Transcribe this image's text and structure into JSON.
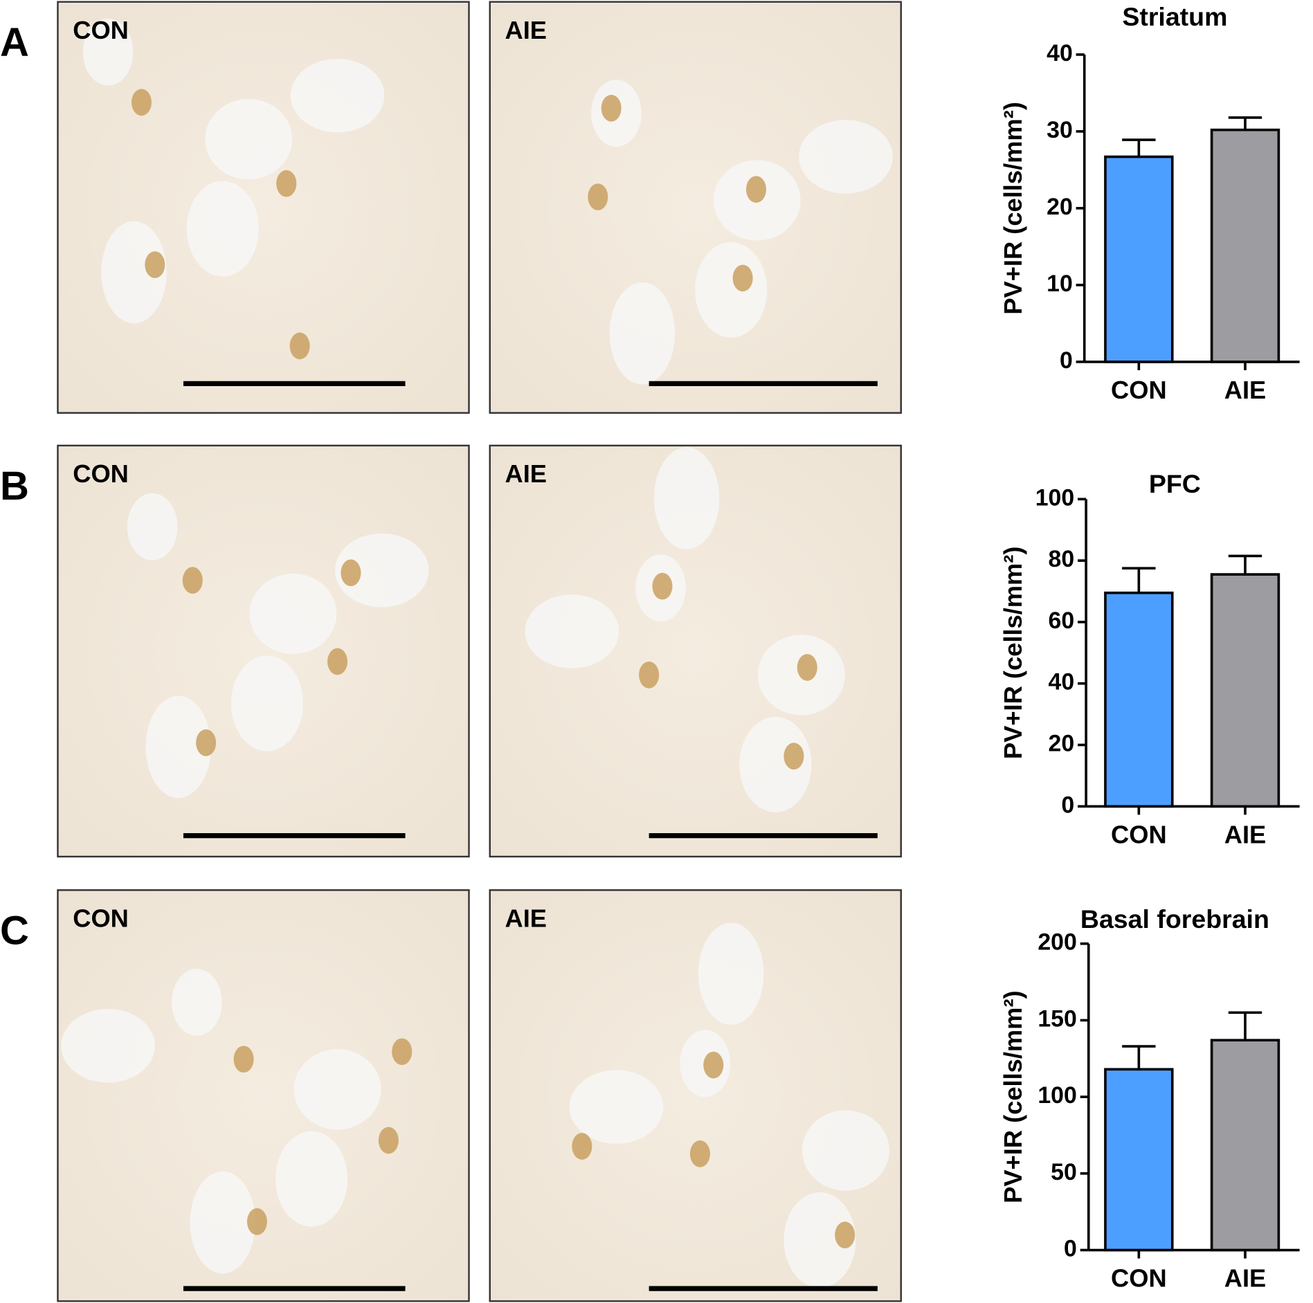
{
  "panels": [
    {
      "letter": "A",
      "images": [
        "CON",
        "AIE"
      ]
    },
    {
      "letter": "B",
      "images": [
        "CON",
        "AIE"
      ]
    },
    {
      "letter": "C",
      "images": [
        "CON",
        "AIE"
      ]
    }
  ],
  "chart_data": [
    {
      "type": "bar",
      "title": "Striatum",
      "ylabel": "PV+IR (cells/mm²)",
      "categories": [
        "CON",
        "AIE"
      ],
      "values": [
        26.7,
        30.2
      ],
      "errors": [
        2.2,
        1.6
      ],
      "colors": [
        "#4d9fff",
        "#9d9da1"
      ],
      "ylim": [
        0,
        40
      ],
      "yticks": [
        0,
        10,
        20,
        30,
        40
      ]
    },
    {
      "type": "bar",
      "title": "PFC",
      "ylabel": "PV+IR (cells/mm²)",
      "categories": [
        "CON",
        "AIE"
      ],
      "values": [
        69.5,
        75.5
      ],
      "errors": [
        8,
        6
      ],
      "colors": [
        "#4d9fff",
        "#9d9da1"
      ],
      "ylim": [
        0,
        100
      ],
      "yticks": [
        0,
        20,
        40,
        60,
        80,
        100
      ]
    },
    {
      "type": "bar",
      "title": "Basal forebrain",
      "ylabel": "PV+IR (cells/mm²)",
      "categories": [
        "CON",
        "AIE"
      ],
      "values": [
        118,
        137
      ],
      "errors": [
        15,
        18
      ],
      "colors": [
        "#4d9fff",
        "#9d9da1"
      ],
      "ylim": [
        0,
        200
      ],
      "yticks": [
        0,
        50,
        100,
        150,
        200
      ]
    }
  ]
}
